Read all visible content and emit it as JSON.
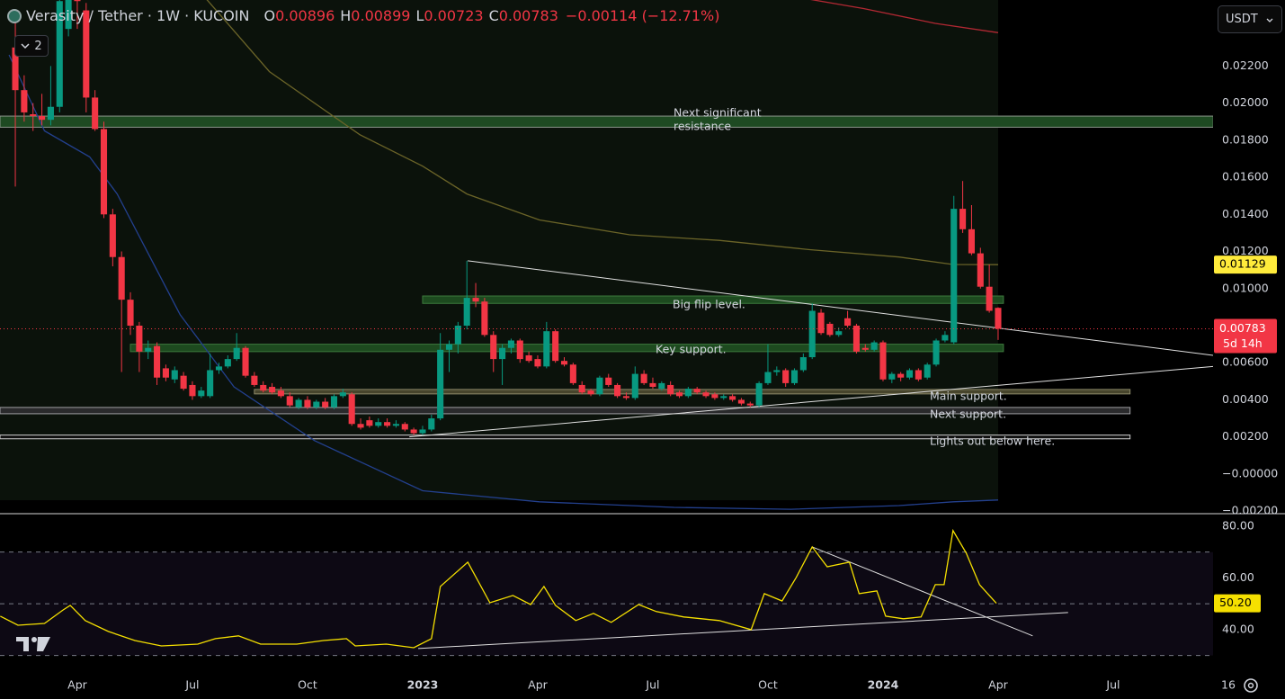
{
  "chart_data": {
    "type": "candlestick",
    "title": "Verasity / Tether · 1W · KUCOIN",
    "ohlc": [
      {
        "label": "O",
        "value": 0.00896
      },
      {
        "label": "H",
        "value": 0.00899
      },
      {
        "label": "L",
        "value": 0.00723
      },
      {
        "label": "C",
        "value": 0.00783
      }
    ],
    "change": "−0.00114 (−12.71%)",
    "indicators_count": 2,
    "currency": "USDT",
    "xlim": [
      -8.73,
      136.4
    ],
    "xticks": [
      {
        "value": 0,
        "label": "Apr"
      },
      {
        "value": 13,
        "label": "Jul"
      },
      {
        "value": 26,
        "label": "Oct"
      },
      {
        "value": 39,
        "label": "2023"
      },
      {
        "value": 52,
        "label": "Apr"
      },
      {
        "value": 65,
        "label": "Jul"
      },
      {
        "value": 78,
        "label": "Oct"
      },
      {
        "value": 91,
        "label": "2024"
      },
      {
        "value": 104,
        "label": "Apr"
      },
      {
        "value": 117,
        "label": "Jul"
      },
      {
        "value": 130,
        "label": "16"
      }
    ],
    "ylim": [
      -0.00209,
      0.02556
    ],
    "yticks": [
      {
        "value": 0.022,
        "label": "0.02200"
      },
      {
        "value": 0.02,
        "label": "0.02000"
      },
      {
        "value": 0.018,
        "label": "0.01800"
      },
      {
        "value": 0.016,
        "label": "0.01600"
      },
      {
        "value": 0.014,
        "label": "0.01400"
      },
      {
        "value": 0.012,
        "label": "0.01200"
      },
      {
        "value": 0.01,
        "label": "0.01000"
      },
      {
        "value": 0.006,
        "label": "0.00600"
      },
      {
        "value": 0.004,
        "label": "0.00400"
      },
      {
        "value": 0.002,
        "label": "0.00200"
      },
      {
        "value": 0,
        "label": "−0.00000"
      },
      {
        "value": -0.002,
        "label": "−0.00200"
      }
    ],
    "grid": false,
    "candles": {
      "up_color": "#089981",
      "down_color": "#f23645",
      "x": [
        -7,
        -6,
        -5,
        -4,
        -3,
        -2,
        -1,
        0,
        1,
        2,
        3,
        4,
        5,
        6,
        7,
        8,
        9,
        10,
        11,
        12,
        13,
        14,
        15,
        16,
        17,
        18,
        19,
        20,
        21,
        22,
        23,
        24,
        25,
        26,
        27,
        28,
        29,
        30,
        31,
        32,
        33,
        34,
        35,
        36,
        37,
        38,
        39,
        40,
        41,
        42,
        43,
        44,
        45,
        46,
        47,
        48,
        49,
        50,
        51,
        52,
        53,
        54,
        55,
        56,
        57,
        58,
        59,
        60,
        61,
        62,
        63,
        64,
        65,
        66,
        67,
        68,
        69,
        70,
        71,
        72,
        73,
        74,
        75,
        76,
        77,
        78,
        79,
        80,
        81,
        82,
        83,
        84,
        85,
        86,
        87,
        88,
        89,
        90,
        91,
        92,
        93,
        94,
        95,
        96,
        97,
        98,
        99,
        100,
        101,
        102,
        103,
        104
      ],
      "open": [
        0.023,
        0.0207,
        0.0194,
        0.0193,
        0.0191,
        0.0198,
        0.024,
        0.0258,
        0.025,
        0.0203,
        0.0186,
        0.014,
        0.0117,
        0.0094,
        0.008,
        0.0066,
        0.0069,
        0.0057,
        0.0051,
        0.0053,
        0.0048,
        0.0042,
        0.0042,
        0.0056,
        0.0058,
        0.0062,
        0.0068,
        0.0053,
        0.0048,
        0.0047,
        0.0045,
        0.0042,
        0.0036,
        0.004,
        0.0036,
        0.0039,
        0.0036,
        0.0042,
        0.0043,
        0.0027,
        0.0029,
        0.0026,
        0.0028,
        0.0026,
        0.0027,
        0.0024,
        0.0022,
        0.0024,
        0.003,
        0.0067,
        0.007,
        0.008,
        0.0095,
        0.0093,
        0.0075,
        0.0062,
        0.0068,
        0.0072,
        0.0064,
        0.0062,
        0.0058,
        0.0077,
        0.0061,
        0.0059,
        0.0048,
        0.0045,
        0.0043,
        0.0052,
        0.0048,
        0.0042,
        0.0041,
        0.0054,
        0.0049,
        0.0046,
        0.0048,
        0.0044,
        0.0042,
        0.0046,
        0.0044,
        0.0043,
        0.0041,
        0.0042,
        0.004,
        0.0038,
        0.0037,
        0.0049,
        0.0055,
        0.0056,
        0.0049,
        0.0056,
        0.0063,
        0.0087,
        0.0081,
        0.0075,
        0.0084,
        0.008,
        0.0068,
        0.0067,
        0.0071,
        0.0051,
        0.0054,
        0.0052,
        0.0056,
        0.0052,
        0.0059,
        0.0072,
        0.0071,
        0.0143,
        0.0132,
        0.0119,
        0.0101,
        0.00896
      ],
      "high": [
        0.0245,
        0.0215,
        0.02,
        0.0205,
        0.022,
        0.026,
        0.0262,
        0.0262,
        0.0254,
        0.0207,
        0.019,
        0.0143,
        0.012,
        0.0098,
        0.0082,
        0.0072,
        0.0071,
        0.0059,
        0.0058,
        0.0055,
        0.005,
        0.0047,
        0.0065,
        0.006,
        0.0064,
        0.0076,
        0.0069,
        0.0055,
        0.005,
        0.0049,
        0.0047,
        0.0044,
        0.0041,
        0.0042,
        0.004,
        0.0041,
        0.0043,
        0.0046,
        0.0044,
        0.003,
        0.0031,
        0.003,
        0.003,
        0.0029,
        0.0028,
        0.0025,
        0.0026,
        0.0032,
        0.0076,
        0.0072,
        0.0082,
        0.0115,
        0.0103,
        0.0095,
        0.0077,
        0.007,
        0.0073,
        0.0073,
        0.0066,
        0.0064,
        0.0082,
        0.0078,
        0.0063,
        0.006,
        0.005,
        0.0046,
        0.0053,
        0.0054,
        0.0049,
        0.0044,
        0.0058,
        0.0056,
        0.0052,
        0.005,
        0.005,
        0.0045,
        0.0047,
        0.0047,
        0.0045,
        0.0044,
        0.0043,
        0.0043,
        0.0041,
        0.0039,
        0.005,
        0.007,
        0.0058,
        0.0057,
        0.0057,
        0.0065,
        0.0092,
        0.0089,
        0.0082,
        0.0079,
        0.0088,
        0.0081,
        0.007,
        0.0072,
        0.0072,
        0.0055,
        0.0055,
        0.0057,
        0.0057,
        0.006,
        0.0073,
        0.0077,
        0.015,
        0.0158,
        0.0145,
        0.0122,
        0.0113,
        0.00899
      ],
      "low": [
        0.0155,
        0.019,
        0.0185,
        0.0188,
        0.0188,
        0.0195,
        0.0236,
        0.024,
        0.0195,
        0.0185,
        0.0138,
        0.0112,
        0.0055,
        0.0075,
        0.0055,
        0.0062,
        0.0048,
        0.005,
        0.0049,
        0.0045,
        0.004,
        0.0041,
        0.0041,
        0.0054,
        0.0057,
        0.0061,
        0.0052,
        0.0047,
        0.0044,
        0.0043,
        0.0041,
        0.0036,
        0.0035,
        0.0035,
        0.0035,
        0.0035,
        0.0035,
        0.0041,
        0.0026,
        0.0024,
        0.0025,
        0.0025,
        0.0025,
        0.0025,
        0.0023,
        0.0021,
        0.0021,
        0.0023,
        0.0029,
        0.0055,
        0.0065,
        0.0078,
        0.009,
        0.0074,
        0.0055,
        0.0048,
        0.0065,
        0.006,
        0.006,
        0.0057,
        0.0057,
        0.006,
        0.0058,
        0.0048,
        0.0043,
        0.0042,
        0.0042,
        0.0047,
        0.0041,
        0.004,
        0.004,
        0.0048,
        0.0046,
        0.0045,
        0.0042,
        0.0041,
        0.0041,
        0.0043,
        0.0041,
        0.004,
        0.004,
        0.0039,
        0.0037,
        0.0036,
        0.0036,
        0.0048,
        0.0053,
        0.0047,
        0.0048,
        0.0055,
        0.0062,
        0.0075,
        0.0074,
        0.0074,
        0.0079,
        0.0065,
        0.0066,
        0.0066,
        0.005,
        0.0049,
        0.005,
        0.0051,
        0.005,
        0.0051,
        0.0058,
        0.0071,
        0.007,
        0.013,
        0.0118,
        0.01,
        0.0087,
        0.00723
      ],
      "close": [
        0.0207,
        0.0195,
        0.0193,
        0.0191,
        0.0198,
        0.0255,
        0.0258,
        0.0255,
        0.0203,
        0.0186,
        0.014,
        0.0117,
        0.0094,
        0.008,
        0.0066,
        0.0068,
        0.0052,
        0.0052,
        0.0056,
        0.0046,
        0.0042,
        0.0045,
        0.0056,
        0.0058,
        0.0062,
        0.0068,
        0.0053,
        0.0048,
        0.0045,
        0.0044,
        0.0042,
        0.0037,
        0.004,
        0.0036,
        0.0039,
        0.0036,
        0.0042,
        0.0044,
        0.0027,
        0.0025,
        0.0026,
        0.0028,
        0.0026,
        0.0027,
        0.0024,
        0.0022,
        0.0024,
        0.003,
        0.0067,
        0.007,
        0.008,
        0.0095,
        0.0093,
        0.0075,
        0.0062,
        0.0068,
        0.0072,
        0.0062,
        0.0061,
        0.0058,
        0.0077,
        0.0061,
        0.0059,
        0.0049,
        0.0044,
        0.0043,
        0.0052,
        0.0048,
        0.0042,
        0.0041,
        0.0054,
        0.0049,
        0.0047,
        0.0049,
        0.0043,
        0.0042,
        0.0046,
        0.0044,
        0.0042,
        0.0041,
        0.0042,
        0.004,
        0.0038,
        0.0037,
        0.0049,
        0.0055,
        0.0056,
        0.0049,
        0.0056,
        0.0063,
        0.0088,
        0.0076,
        0.0075,
        0.0077,
        0.008,
        0.0066,
        0.0067,
        0.0071,
        0.0051,
        0.0054,
        0.0052,
        0.0056,
        0.0051,
        0.0059,
        0.0072,
        0.0075,
        0.0143,
        0.0132,
        0.0119,
        0.0101,
        0.0088,
        0.00783
      ]
    },
    "moving_averages": [
      {
        "color": "#6b6428",
        "value_label_color": "#ffeb3b",
        "x": [
          14.6,
          21.7,
          31.9,
          39,
          44,
          52.2,
          62.4,
          72.5,
          82.7,
          92.8,
          98.9,
          104
        ],
        "values": [
          0.0256,
          0.0217,
          0.0183,
          0.0166,
          0.0151,
          0.0137,
          0.0129,
          0.0126,
          0.0121,
          0.0117,
          0.0113,
          0.01129
        ]
      },
      {
        "color": "#b22833",
        "x": [
          82.7,
          88.8,
          96.9,
          104
        ],
        "values": [
          0.0256,
          0.0251,
          0.0243,
          0.0238
        ]
      },
      {
        "color": "#23408e",
        "x": [
          -7.7,
          -3.7,
          1.4,
          4.5,
          11.6,
          17.7,
          26.8,
          39,
          52.2,
          67.4,
          80.6,
          92.8,
          98.9,
          104
        ],
        "values": [
          0.0226,
          0.0185,
          0.0171,
          0.0151,
          0.0086,
          0.0047,
          0.0018,
          -0.0009,
          -0.0015,
          -0.0018,
          -0.0019,
          -0.0017,
          -0.0015,
          -0.0014
        ]
      }
    ],
    "ma_price": 0.01129,
    "last_price": 0.00783,
    "countdown": "5d 14h",
    "zones": [
      {
        "label": [
          "Next significant",
          "resistance"
        ],
        "from": 0.0187,
        "to": 0.0193,
        "x": [
          -8.73,
          128.3
        ],
        "color": "#1e4a22",
        "border": "#8a948a"
      },
      {
        "label": [
          "Big flip level."
        ],
        "from": 0.0092,
        "to": 0.0096,
        "x": [
          39,
          104.6
        ],
        "color": "#1d4a1f",
        "border": "#3d7a3d"
      },
      {
        "label": [
          "Key support."
        ],
        "from": 0.0066,
        "to": 0.007,
        "x": [
          6,
          104.6
        ],
        "color": "#1d4a1f",
        "border": "#3d7a3d"
      },
      {
        "label": [
          "Main support."
        ],
        "from": 0.00432,
        "to": 0.00456,
        "x": [
          20,
          118.9
        ],
        "color": "#47452c",
        "border": "#8d8a6a"
      },
      {
        "label": [
          "Next support."
        ],
        "from": 0.00325,
        "to": 0.00359,
        "x": [
          -8.73,
          118.9
        ],
        "color": "#2a2a2c",
        "border": "#a0a0a4"
      },
      {
        "label": [
          "Lights out below here."
        ],
        "from": 0.0019,
        "to": 0.0021,
        "x": [
          -8.73,
          118.9
        ],
        "color": "#101010",
        "border": "#d0d0d0"
      }
    ],
    "trendlines": [
      {
        "x": [
          44.1,
          128.3
        ],
        "y": [
          0.0115,
          0.0064
        ],
        "color": "#e0e0e0"
      },
      {
        "x": [
          37.5,
          128.3
        ],
        "y": [
          0.002,
          0.0058
        ],
        "color": "#e0e0e0"
      }
    ],
    "rsi": {
      "color": "#f5e000",
      "ylim": [
        24.3,
        84.5
      ],
      "yticks": [
        {
          "value": 80,
          "label": "80.00"
        },
        {
          "value": 60,
          "label": "60.00"
        },
        {
          "value": 40,
          "label": "40.00"
        }
      ],
      "levels": [
        70,
        50,
        30
      ],
      "x": [
        -8.7,
        -6.7,
        -3.7,
        -1.6,
        -0.8,
        0.9,
        3.5,
        6.5,
        9.5,
        13.6,
        15.6,
        18.2,
        20.7,
        24.8,
        27.8,
        30.4,
        31.4,
        34.9,
        38,
        40,
        41,
        44.1,
        46.6,
        49.2,
        51.2,
        52.7,
        54,
        56.3,
        58.3,
        60.3,
        63.4,
        65.4,
        68.5,
        72.5,
        76.1,
        77.6,
        79.6,
        81.2,
        83,
        84.7,
        87.2,
        88.3,
        90.3,
        91.3,
        93.3,
        95.3,
        96.9,
        97.9,
        98.9,
        100.4,
        101.9,
        103.8
      ],
      "values": [
        45.2,
        41.7,
        42.4,
        47.6,
        49.4,
        43.5,
        39.3,
        35.8,
        33.7,
        34.4,
        36.5,
        37.6,
        34.4,
        34.4,
        35.8,
        36.5,
        33.7,
        34.4,
        33,
        36.5,
        56.7,
        66.1,
        50.4,
        53.2,
        49.7,
        56.7,
        49.4,
        43.5,
        46.3,
        42.8,
        49.7,
        47,
        44.9,
        43.5,
        40,
        53.9,
        51.1,
        60.2,
        72,
        64.3,
        66.1,
        53.9,
        55,
        45.2,
        44.2,
        44.9,
        57.4,
        57.4,
        78.3,
        69.6,
        57.4,
        50.2
      ],
      "last_value": {
        "value": 50.2,
        "label": "50.20"
      },
      "trendlines": [
        {
          "x": [
            83,
            107.9
          ],
          "y": [
            72,
            37.6
          ]
        },
        {
          "x": [
            38.5,
            111.9
          ],
          "y": [
            32.7,
            46.6
          ]
        }
      ]
    }
  }
}
